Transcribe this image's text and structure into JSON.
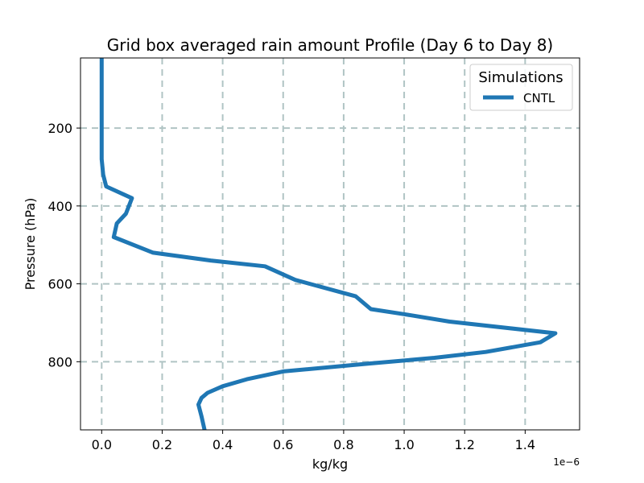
{
  "chart_data": {
    "type": "line",
    "title": "Grid box averaged rain amount Profile (Day 6 to Day 8)",
    "xlabel": "kg/kg",
    "ylabel": "Pressure (hPa)",
    "x_offset_label": "1e−6",
    "x_scale_factor": 1e-06,
    "xlim": [
      -0.07,
      1.58
    ],
    "ylim": [
      975,
      20
    ],
    "y_inverted": true,
    "xticks": [
      0.0,
      0.2,
      0.4,
      0.6,
      0.8,
      1.0,
      1.2,
      1.4
    ],
    "xtick_labels": [
      "0.0",
      "0.2",
      "0.4",
      "0.6",
      "0.8",
      "1.0",
      "1.2",
      "1.4"
    ],
    "yticks": [
      200,
      400,
      600,
      800
    ],
    "ytick_labels": [
      "200",
      "400",
      "600",
      "800"
    ],
    "grid": true,
    "legend": {
      "title": "Simulations",
      "placement": "upper-right"
    },
    "series": [
      {
        "name": "CNTL",
        "color": "#1f77b4",
        "points": [
          {
            "x": 0.0,
            "y": 20
          },
          {
            "x": 0.0,
            "y": 100
          },
          {
            "x": 0.0,
            "y": 200
          },
          {
            "x": 0.0,
            "y": 280
          },
          {
            "x": 0.005,
            "y": 320
          },
          {
            "x": 0.015,
            "y": 350
          },
          {
            "x": 0.1,
            "y": 380
          },
          {
            "x": 0.08,
            "y": 420
          },
          {
            "x": 0.05,
            "y": 445
          },
          {
            "x": 0.04,
            "y": 480
          },
          {
            "x": 0.17,
            "y": 520
          },
          {
            "x": 0.36,
            "y": 540
          },
          {
            "x": 0.54,
            "y": 555
          },
          {
            "x": 0.64,
            "y": 590
          },
          {
            "x": 0.84,
            "y": 632
          },
          {
            "x": 0.89,
            "y": 665
          },
          {
            "x": 1.0,
            "y": 678
          },
          {
            "x": 1.15,
            "y": 697
          },
          {
            "x": 1.5,
            "y": 727
          },
          {
            "x": 1.45,
            "y": 750
          },
          {
            "x": 1.27,
            "y": 775
          },
          {
            "x": 1.1,
            "y": 790
          },
          {
            "x": 0.88,
            "y": 805
          },
          {
            "x": 0.6,
            "y": 825
          },
          {
            "x": 0.48,
            "y": 845
          },
          {
            "x": 0.4,
            "y": 863
          },
          {
            "x": 0.35,
            "y": 880
          },
          {
            "x": 0.33,
            "y": 893
          },
          {
            "x": 0.32,
            "y": 910
          },
          {
            "x": 0.33,
            "y": 940
          },
          {
            "x": 0.34,
            "y": 975
          }
        ]
      }
    ]
  }
}
